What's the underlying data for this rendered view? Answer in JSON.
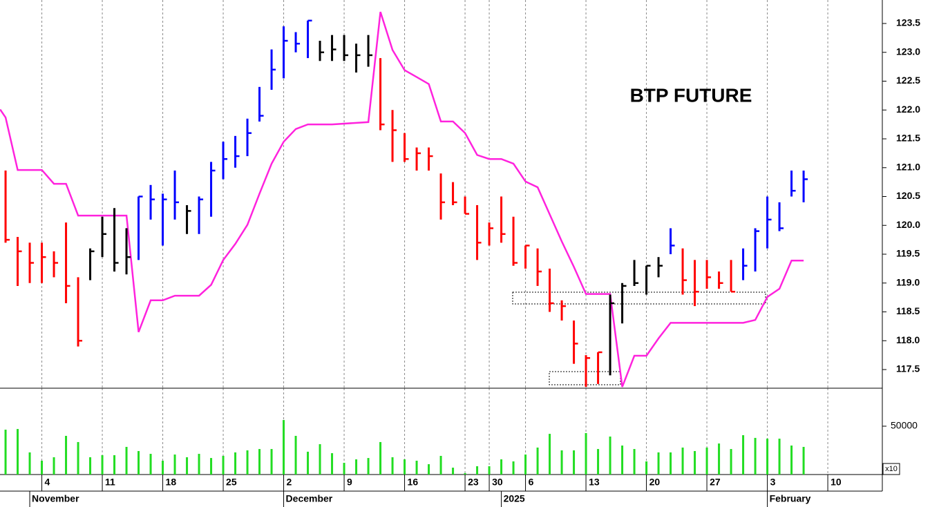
{
  "chart_data": [
    {
      "type": "ohlc",
      "title": "BTP FUTURE",
      "high": [
        120.95,
        119.8,
        119.7,
        119.7,
        119.55,
        120.05,
        119.1,
        119.6,
        120.15,
        120.3,
        119.95,
        120.5,
        120.7,
        120.55,
        120.95,
        120.35,
        120.5,
        121.1,
        121.45,
        121.55,
        121.85,
        122.4,
        123.05,
        123.45,
        123.35,
        123.55,
        123.2,
        123.3,
        123.3,
        123.15,
        123.3,
        122.9,
        122.0,
        121.6,
        121.35,
        121.35,
        120.9,
        120.75,
        120.5,
        120.35,
        120.05,
        120.5,
        120.15,
        119.65,
        119.6,
        119.25,
        118.7,
        118.35,
        117.75,
        117.8,
        118.8,
        119.0,
        119.4,
        119.3,
        119.45,
        119.95,
        119.6,
        119.4,
        119.4,
        119.2,
        119.4,
        119.6,
        119.95,
        120.5,
        120.4,
        120.95,
        120.95
      ],
      "low": [
        119.7,
        118.95,
        119.0,
        119.0,
        119.1,
        118.65,
        117.9,
        119.05,
        119.45,
        119.2,
        119.15,
        119.4,
        120.1,
        119.65,
        120.1,
        119.85,
        119.85,
        120.15,
        120.8,
        121.0,
        121.2,
        121.8,
        122.35,
        122.55,
        123.0,
        122.9,
        122.85,
        122.85,
        122.85,
        122.65,
        122.75,
        121.65,
        121.1,
        121.1,
        120.95,
        120.95,
        120.1,
        120.35,
        120.2,
        119.4,
        119.65,
        119.7,
        119.3,
        119.25,
        118.95,
        118.5,
        118.35,
        117.6,
        117.2,
        117.25,
        117.4,
        118.3,
        118.95,
        118.8,
        119.1,
        119.5,
        118.8,
        118.6,
        118.9,
        118.9,
        118.85,
        119.05,
        119.2,
        119.6,
        119.9,
        120.5,
        120.4
      ],
      "close": [
        119.75,
        119.55,
        119.35,
        119.45,
        119.35,
        118.95,
        118.0,
        119.55,
        119.85,
        119.35,
        119.45,
        120.5,
        120.45,
        120.45,
        120.4,
        120.25,
        120.45,
        120.95,
        121.15,
        121.2,
        121.6,
        121.9,
        122.7,
        123.2,
        123.15,
        123.55,
        123.0,
        123.05,
        122.95,
        122.95,
        122.95,
        121.75,
        121.65,
        121.15,
        121.25,
        121.2,
        120.4,
        120.4,
        120.2,
        119.7,
        119.95,
        119.85,
        119.35,
        119.65,
        119.2,
        118.65,
        118.6,
        117.95,
        117.7,
        117.8,
        118.65,
        118.95,
        119.0,
        119.3,
        119.3,
        119.65,
        119.05,
        118.85,
        119.1,
        119.0,
        118.85,
        119.3,
        119.9,
        120.1,
        119.95,
        120.6,
        120.8
      ],
      "colors": [
        "#ff0000",
        "#ff0000",
        "#ff0000",
        "#ff0000",
        "#ff0000",
        "#ff0000",
        "#ff0000",
        "#000000",
        "#000000",
        "#000000",
        "#000000",
        "#0000ff",
        "#0000ff",
        "#0000ff",
        "#0000ff",
        "#000000",
        "#0000ff",
        "#0000ff",
        "#0000ff",
        "#0000ff",
        "#0000ff",
        "#0000ff",
        "#0000ff",
        "#0000ff",
        "#0000ff",
        "#0000ff",
        "#000000",
        "#000000",
        "#000000",
        "#000000",
        "#000000",
        "#ff0000",
        "#ff0000",
        "#ff0000",
        "#ff0000",
        "#ff0000",
        "#ff0000",
        "#ff0000",
        "#ff0000",
        "#ff0000",
        "#ff0000",
        "#ff0000",
        "#ff0000",
        "#ff0000",
        "#ff0000",
        "#ff0000",
        "#ff0000",
        "#ff0000",
        "#ff0000",
        "#ff0000",
        "#000000",
        "#000000",
        "#000000",
        "#000000",
        "#000000",
        "#0000ff",
        "#ff0000",
        "#ff0000",
        "#ff0000",
        "#ff0000",
        "#ff0000",
        "#0000ff",
        "#0000ff",
        "#0000ff",
        "#0000ff",
        "#0000ff",
        "#0000ff"
      ],
      "band": {
        "color": "#ff22dd",
        "x": [
          -0.45,
          0,
          1,
          3,
          4,
          5,
          6,
          10,
          11,
          12,
          13,
          14,
          16,
          17,
          18,
          19,
          20,
          21,
          22,
          23,
          24,
          25,
          27,
          30,
          31,
          32,
          33,
          34,
          35,
          36,
          37,
          38,
          39,
          40,
          41,
          42,
          43,
          44,
          45,
          46,
          47,
          48,
          50,
          51,
          52,
          53,
          54,
          55,
          61,
          62,
          63,
          64,
          65,
          66
        ],
        "values": [
          122.01,
          121.87,
          120.96,
          120.96,
          120.72,
          120.72,
          120.17,
          120.17,
          118.15,
          118.7,
          118.7,
          118.78,
          118.78,
          118.97,
          119.4,
          119.68,
          120.01,
          120.55,
          121.07,
          121.45,
          121.67,
          121.75,
          121.75,
          121.79,
          123.7,
          123.04,
          122.69,
          122.57,
          122.45,
          121.8,
          121.8,
          121.6,
          121.22,
          121.15,
          121.15,
          121.07,
          120.76,
          120.66,
          120.19,
          119.72,
          119.28,
          118.81,
          118.81,
          117.2,
          117.74,
          117.74,
          118.04,
          118.31,
          118.31,
          118.36,
          118.76,
          118.9,
          119.39,
          119.39
        ]
      },
      "xlim": [
        -0.46,
        72.51
      ],
      "ylim": [
        117.177,
        123.907
      ],
      "yticks": [
        117.5,
        {
          "value": 118,
          "label": "118.0"
        },
        118.5,
        {
          "value": 119,
          "label": "119.0"
        },
        119.5,
        {
          "value": 120,
          "label": "120.0"
        },
        120.5,
        {
          "value": 121,
          "label": "121.0"
        },
        121.5,
        {
          "value": 122,
          "label": "122.0"
        },
        122.5,
        {
          "value": 123,
          "label": "123.0"
        },
        123.5
      ],
      "grid": true
    },
    {
      "type": "bar",
      "values": [
        46400,
        47100,
        22900,
        14300,
        17900,
        40000,
        33600,
        17900,
        20000,
        20000,
        28600,
        24300,
        21400,
        14300,
        20700,
        17900,
        21400,
        17100,
        19300,
        22900,
        25000,
        26400,
        26400,
        56400,
        40000,
        23600,
        31400,
        22100,
        12100,
        15700,
        17100,
        33600,
        17900,
        15700,
        14300,
        10700,
        19300,
        7100,
        1500,
        8600,
        8600,
        15700,
        13600,
        20700,
        27900,
        42100,
        25000,
        25000,
        42900,
        26400,
        39300,
        30000,
        26400,
        13600,
        22900,
        22900,
        27900,
        24300,
        27900,
        32100,
        26400,
        40700,
        37900,
        37100,
        37100,
        30000,
        28600
      ],
      "color": "#22dd22",
      "multiplier_label": "x10",
      "xlim": [
        -0.46,
        72.51
      ],
      "ylim": [
        0,
        89300
      ],
      "yticks": [
        50000
      ],
      "xticks": [
        {
          "value": 3,
          "label": "4"
        },
        {
          "value": 8,
          "label": "11"
        },
        {
          "value": 13,
          "label": "18"
        },
        {
          "value": 18,
          "label": "25"
        },
        {
          "value": 23,
          "label": "2"
        },
        {
          "value": 28,
          "label": "9"
        },
        {
          "value": 33,
          "label": "16"
        },
        {
          "value": 38,
          "label": "23"
        },
        {
          "value": 40,
          "label": "30"
        },
        {
          "value": 43,
          "label": "6"
        },
        {
          "value": 48,
          "label": "13"
        },
        {
          "value": 53,
          "label": "20"
        },
        {
          "value": 58,
          "label": "27"
        },
        {
          "value": 63,
          "label": "3"
        },
        {
          "value": 68,
          "label": "10"
        }
      ],
      "month_ticks": [
        {
          "value": 2,
          "label": "November"
        },
        {
          "value": 23,
          "label": "December"
        },
        {
          "value": 41,
          "label": "2025"
        },
        {
          "value": 63,
          "label": "February"
        }
      ],
      "grid": true
    }
  ]
}
